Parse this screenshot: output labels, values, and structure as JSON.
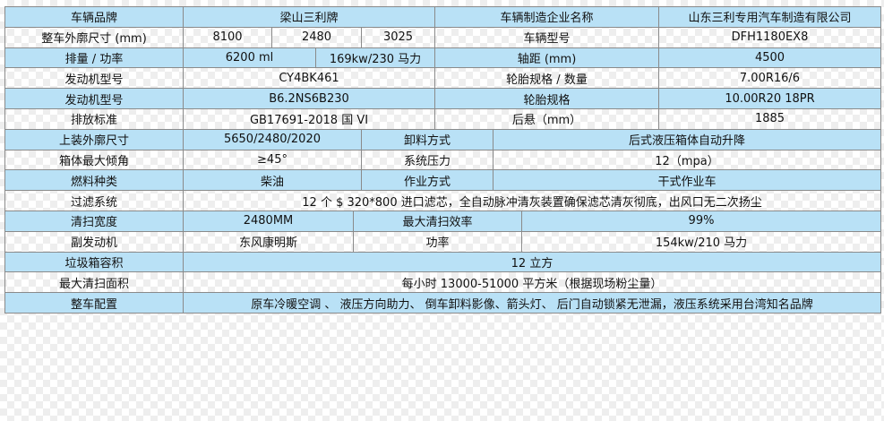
{
  "rows": [
    {
      "cells": [
        "车辆品牌",
        "梁山三利牌",
        "车辆制造企业名称",
        "山东三利专用汽车制造有限公司"
      ]
    },
    {
      "cells": [
        "整车外廓尺寸 (mm)",
        "8100",
        "2480",
        "3025",
        "车辆型号",
        "DFH1180EX8"
      ]
    },
    {
      "cells": [
        "排量 / 功率",
        "6200 ml",
        "169kw/230 马力",
        "轴距 (mm)",
        "4500"
      ]
    },
    {
      "cells": [
        "发动机型号",
        "CY4BK461",
        "轮胎规格 / 数量",
        "7.00R16/6"
      ]
    },
    {
      "cells": [
        "发动机型号",
        "B6.2NS6B230",
        "轮胎规格",
        "10.00R20 18PR"
      ]
    },
    {
      "cells": [
        "排放标准",
        "GB17691-2018 国 VI",
        "后悬（mm）",
        "1885"
      ]
    },
    {
      "cells": [
        "上装外廓尺寸",
        "5650/2480/2020",
        "卸料方式",
        "后式液压箱体自动升降"
      ]
    },
    {
      "cells": [
        "箱体最大倾角",
        "≥45°",
        "系统压力",
        "12（mpa）"
      ]
    },
    {
      "cells": [
        "燃料种类",
        "柴油",
        "作业方式",
        "干式作业车"
      ]
    },
    {
      "cells": [
        "过滤系统",
        "12 个 $ 320*800 进口滤芯，全自动脉冲清灰装置确保滤芯清灰彻底，出风口无二次扬尘"
      ]
    },
    {
      "cells": [
        "清扫宽度",
        "2480MM",
        "最大清扫效率",
        "99%"
      ]
    },
    {
      "cells": [
        "副发动机",
        "东风康明斯",
        "功率",
        "154kw/210 马力"
      ]
    },
    {
      "cells": [
        "垃圾箱容积",
        "12 立方"
      ]
    },
    {
      "cells": [
        "最大清扫面积",
        "每小时 13000-51000 平方米（根据现场粉尘量）"
      ]
    },
    {
      "cells": [
        "整车配置",
        "原车冷暖空调 、 液压方向助力、 倒车卸料影像、箭头灯、 后门自动锁紧无泄漏，液压系统采用台湾知名品牌"
      ]
    }
  ],
  "colors": {
    "row_blue": "#b9e1f6",
    "border": "#8a8a8a"
  }
}
